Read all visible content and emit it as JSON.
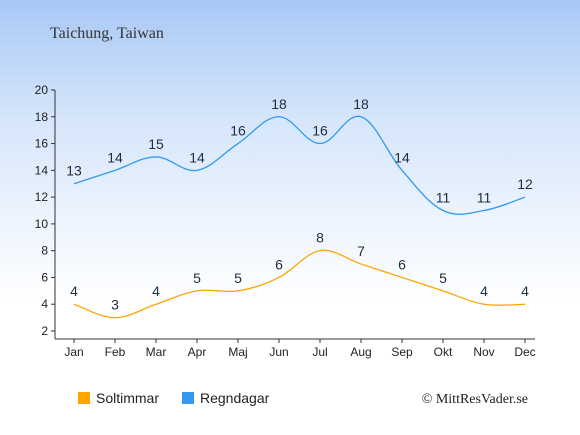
{
  "title": "Taichung, Taiwan",
  "copyright": "© MittResVader.se",
  "chart_data": {
    "type": "line",
    "categories": [
      "Jan",
      "Feb",
      "Mar",
      "Apr",
      "Maj",
      "Jun",
      "Jul",
      "Aug",
      "Sep",
      "Okt",
      "Nov",
      "Dec"
    ],
    "series": [
      {
        "name": "Soltimmar",
        "values": [
          4,
          3,
          4,
          5,
          5,
          6,
          8,
          7,
          6,
          5,
          4,
          4
        ],
        "color": "#ffa500"
      },
      {
        "name": "Regndagar",
        "values": [
          13,
          14,
          15,
          14,
          16,
          18,
          16,
          18,
          14,
          11,
          11,
          12
        ],
        "color": "#3399ee"
      }
    ],
    "yticks": [
      2,
      4,
      6,
      8,
      10,
      12,
      14,
      16,
      18,
      20
    ],
    "ylim": [
      2,
      20
    ],
    "grid": false,
    "legend": "bottom-left"
  }
}
